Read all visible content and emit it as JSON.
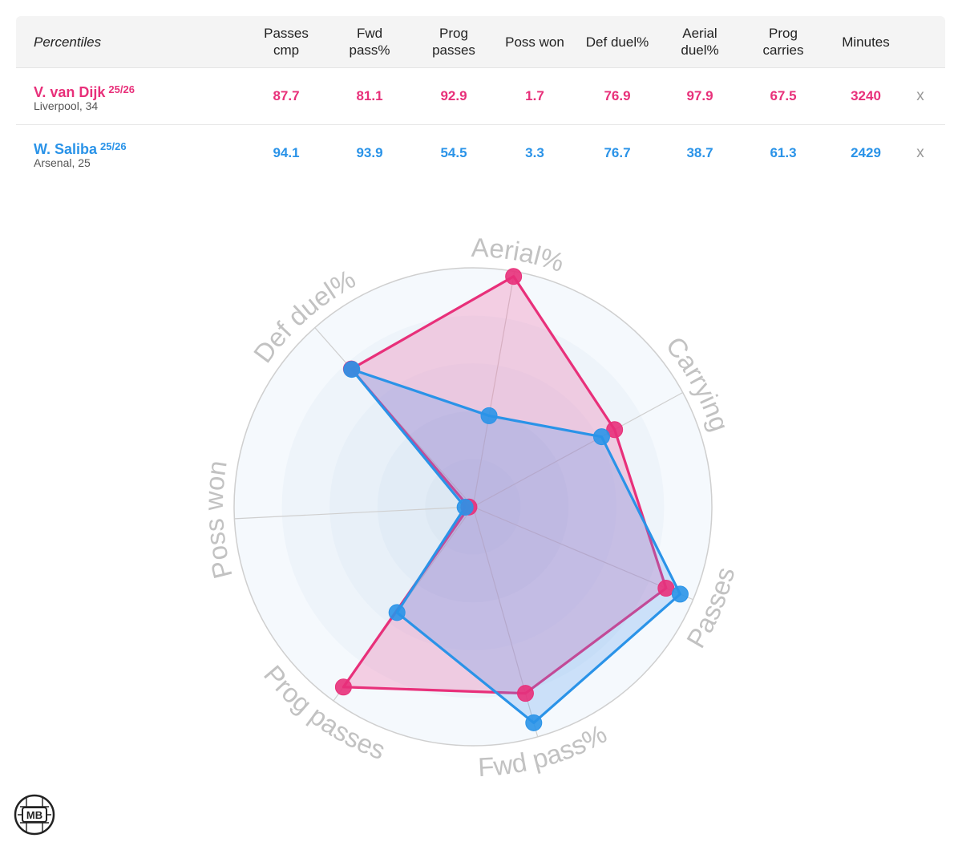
{
  "table": {
    "header_label": "Percentiles",
    "columns": [
      "Passes\ncmp",
      "Fwd\npass%",
      "Prog\npasses",
      "Poss won",
      "Def duel%",
      "Aerial\nduel%",
      "Prog\ncarries",
      "Minutes"
    ],
    "remove_label": "x",
    "players": [
      {
        "name": "V. van Dijk",
        "season": "25/26",
        "sub": "Liverpool, 34",
        "values": [
          "87.7",
          "81.1",
          "92.9",
          "1.7",
          "76.9",
          "97.9",
          "67.5",
          "3240"
        ]
      },
      {
        "name": "W. Saliba",
        "season": "25/26",
        "sub": "Arsenal, 25",
        "values": [
          "94.1",
          "93.9",
          "54.5",
          "3.3",
          "76.7",
          "38.7",
          "61.3",
          "2429"
        ]
      }
    ]
  },
  "colors": {
    "player1": "#e8307a",
    "player2": "#2a93e8"
  },
  "chart_data": {
    "type": "radar",
    "axes": [
      "Aerial%",
      "Carrying",
      "Passes",
      "Fwd pass%",
      "Prog passes",
      "Poss won",
      "Def duel%"
    ],
    "range": [
      0,
      100
    ],
    "series": [
      {
        "name": "V. van Dijk",
        "values": [
          97.9,
          67.5,
          87.7,
          81.1,
          92.9,
          1.7,
          76.9
        ]
      },
      {
        "name": "W. Saliba",
        "values": [
          38.7,
          61.3,
          94.1,
          93.9,
          54.5,
          3.3,
          76.7
        ]
      }
    ]
  },
  "logo": {
    "text": "MB"
  }
}
